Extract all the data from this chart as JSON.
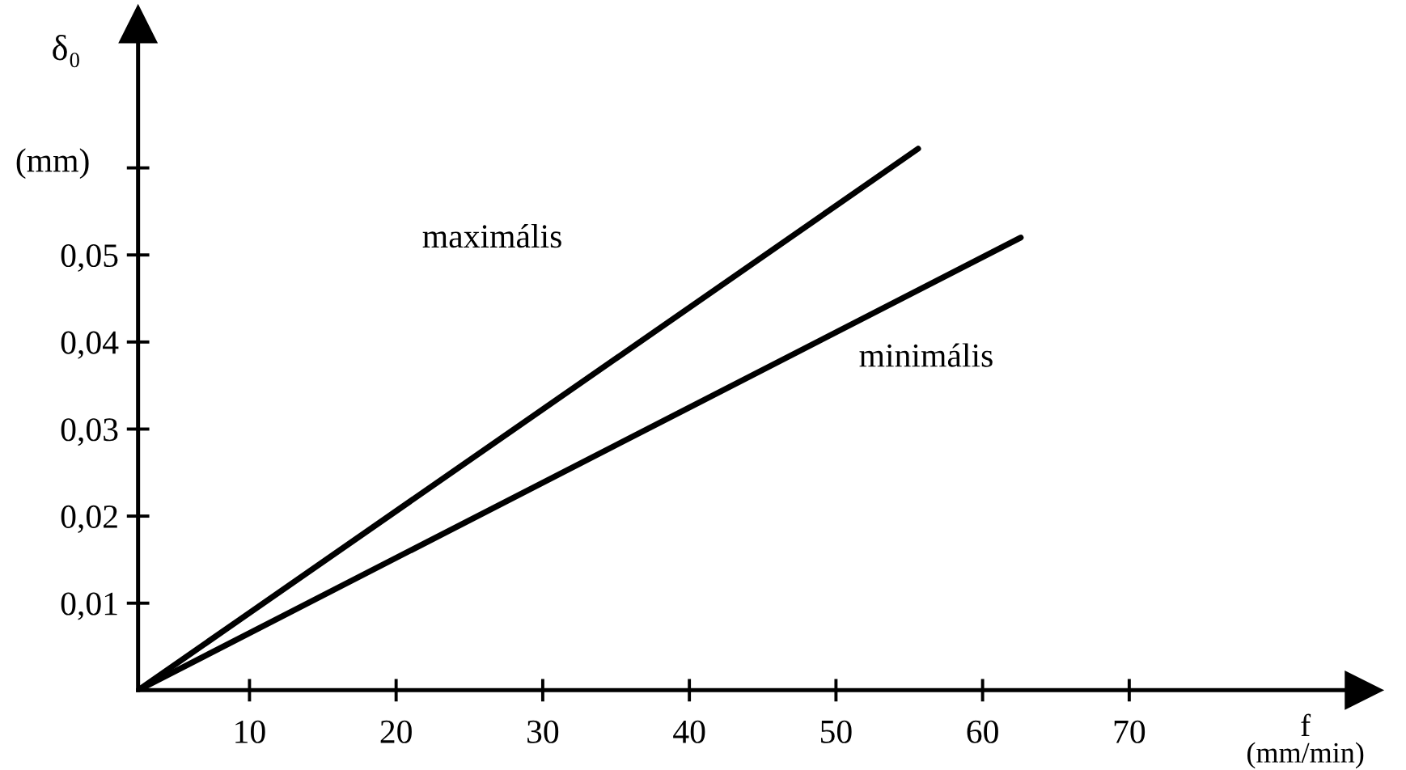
{
  "chart_data": {
    "type": "line",
    "xlabel": "f\n(mm/min)",
    "ylabel": "δ₀\n(mm)",
    "xlim": [
      2.4,
      86
    ],
    "ylim": [
      0,
      0.0765
    ],
    "xticks": [
      10,
      20,
      30,
      40,
      50,
      60,
      70
    ],
    "yticks": [
      {
        "value": 0.01,
        "label": "0,01"
      },
      {
        "value": 0.02,
        "label": "0,02"
      },
      {
        "value": 0.03,
        "label": "0,03"
      },
      {
        "value": 0.04,
        "label": "0,04"
      },
      {
        "value": 0.05,
        "label": "0,05"
      },
      {
        "value": 0.06,
        "label": null
      }
    ],
    "series": [
      {
        "color": "#000000",
        "x": [
          2.4,
          55.6
        ],
        "values": [
          0,
          0.0622
        ]
      },
      {
        "color": "#000000",
        "x": [
          2.4,
          62.6
        ],
        "values": [
          0,
          0.052
        ]
      }
    ],
    "annotations": [
      "maximális",
      "minimális"
    ],
    "grid": false,
    "legend": false,
    "marker": "none",
    "line_style": "solid"
  }
}
